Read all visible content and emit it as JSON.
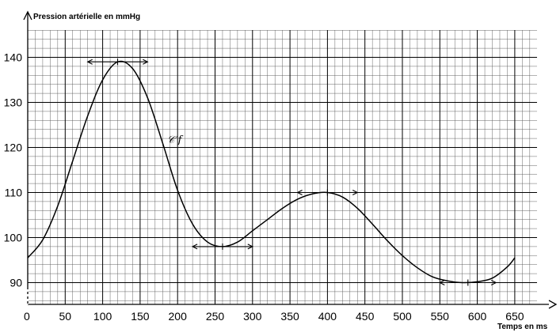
{
  "chart_data": {
    "type": "line",
    "title": "",
    "ylabel": "Pression artérielle en mmHg",
    "xlabel": "Temps en ms",
    "origin_label": "0",
    "curve_label": "𝒞 f",
    "xlim": [
      0,
      650
    ],
    "ylim": [
      90,
      140
    ],
    "x_ticks": [
      0,
      50,
      100,
      150,
      200,
      250,
      300,
      350,
      400,
      450,
      500,
      550,
      600,
      650
    ],
    "y_ticks": [
      90,
      100,
      110,
      120,
      130,
      140
    ],
    "grid": true,
    "series": [
      {
        "x": [
          0,
          20,
          40,
          60,
          80,
          100,
          120,
          140,
          160,
          180,
          200,
          220,
          240,
          260,
          280,
          300,
          320,
          340,
          360,
          380,
          400,
          420,
          440,
          460,
          480,
          500,
          520,
          540,
          560,
          580,
          600,
          620,
          640,
          650
        ],
        "y": [
          95.5,
          99.5,
          107,
          117,
          127,
          135,
          139,
          137.5,
          131,
          121,
          110.5,
          103,
          99,
          98,
          99,
          101.5,
          104,
          106.5,
          108.5,
          109.7,
          110,
          109,
          106.5,
          103,
          99.3,
          96,
          93.3,
          91.3,
          90.4,
          90,
          90.2,
          91,
          93.5,
          95.5
        ]
      }
    ],
    "tangents": [
      {
        "x": [
          80,
          160
        ],
        "y": [
          139,
          139
        ]
      },
      {
        "x": [
          220,
          300
        ],
        "y": [
          98,
          98
        ]
      },
      {
        "x": [
          360,
          440
        ],
        "y": [
          110,
          110
        ]
      },
      {
        "x": [
          550,
          625
        ],
        "y": [
          90,
          90
        ]
      }
    ]
  }
}
